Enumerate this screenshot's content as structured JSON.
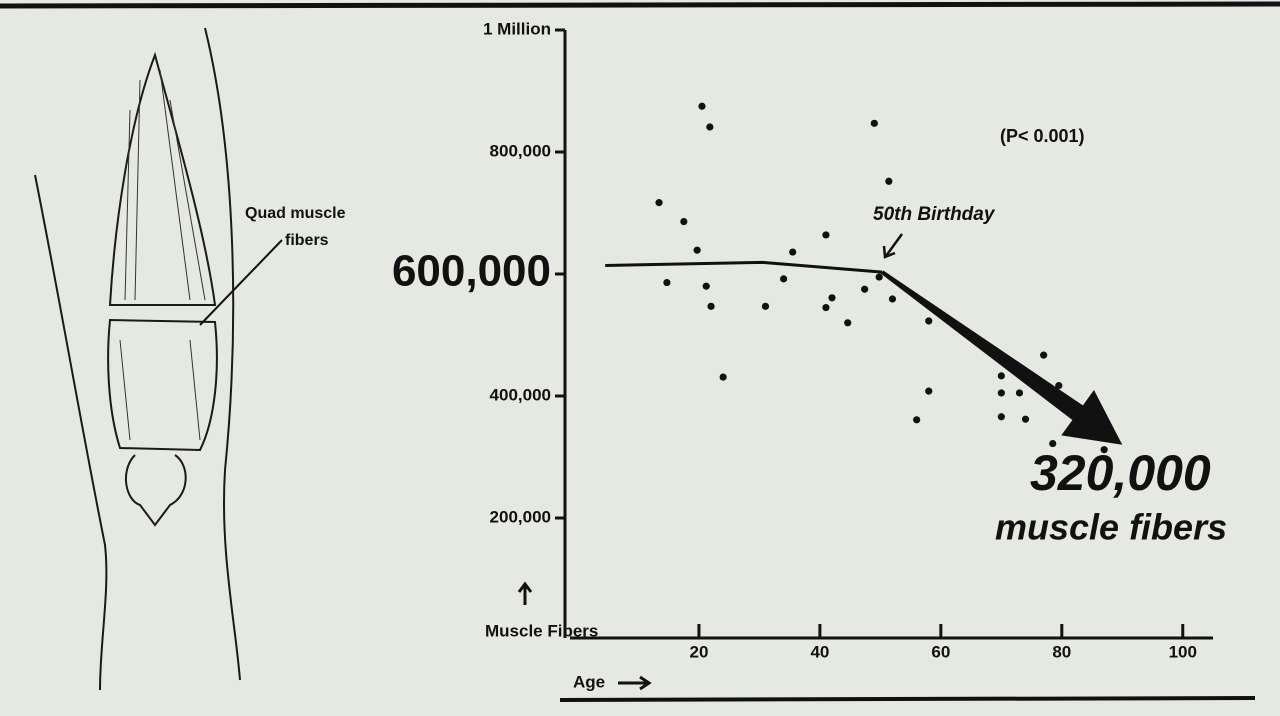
{
  "chart_data": {
    "type": "scatter",
    "x_label": "Age",
    "y_label": "Muscle Fibers",
    "figure_label": [
      "Quad muscle",
      "fibers"
    ],
    "annotations": {
      "p_value": "(P< 0.001)",
      "birthday": "50th Birthday",
      "end_value": "320,000",
      "end_unit": "muscle fibers"
    },
    "xlim": [
      0,
      105
    ],
    "xticks": [
      20,
      40,
      60,
      80,
      100
    ],
    "ylim": [
      0,
      1000000
    ],
    "yticks": [
      {
        "value": 200000,
        "label": "200,000"
      },
      {
        "value": 400000,
        "label": "400,000"
      },
      {
        "value": 600000,
        "label": "600,000"
      },
      {
        "value": 800000,
        "label": "800,000"
      },
      {
        "value": 1000000,
        "label": "1 Million"
      }
    ],
    "color": "#111111",
    "x": [
      13.4,
      14.7,
      17.5,
      19.7,
      20.5,
      21.8,
      21.2,
      22,
      24,
      31,
      34,
      35.5,
      41,
      42,
      41,
      44.6,
      47.4,
      49,
      51.4,
      49.8,
      52,
      58,
      58,
      56,
      70,
      70,
      70,
      73,
      74,
      77,
      79.5,
      78.5,
      87
    ],
    "y": [
      717000,
      586000,
      686000,
      639000,
      875000,
      841000,
      580000,
      547000,
      431000,
      547000,
      592000,
      636000,
      664000,
      561000,
      545000,
      520000,
      575000,
      847000,
      752000,
      595000,
      559000,
      523000,
      408000,
      361000,
      433000,
      405000,
      366000,
      405000,
      362000,
      467000,
      417000,
      322000,
      312000
    ],
    "trend": {
      "x": [
        4.5,
        30.5,
        50.3
      ],
      "y": [
        614000,
        619000,
        603000
      ]
    },
    "arrow": {
      "x": [
        50.3,
        90
      ],
      "y": [
        603000,
        320000
      ]
    }
  }
}
